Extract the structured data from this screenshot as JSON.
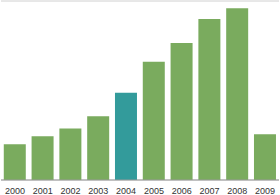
{
  "chart_data": {
    "type": "bar",
    "categories": [
      "2000",
      "2001",
      "2002",
      "2003",
      "2004",
      "2005",
      "2006",
      "2007",
      "2008",
      "2009"
    ],
    "values": [
      1.0,
      1.22,
      1.44,
      1.78,
      2.44,
      3.3,
      3.83,
      4.5,
      4.8,
      1.28
    ],
    "colors": [
      "#7aab5e",
      "#7aab5e",
      "#7aab5e",
      "#7aab5e",
      "#339b9b",
      "#7aab5e",
      "#7aab5e",
      "#7aab5e",
      "#7aab5e",
      "#7aab5e"
    ],
    "ylim": [
      0,
      5
    ],
    "yticks": [
      0,
      1,
      2,
      3,
      4,
      5
    ],
    "grid": true,
    "tick_labels": "x"
  }
}
